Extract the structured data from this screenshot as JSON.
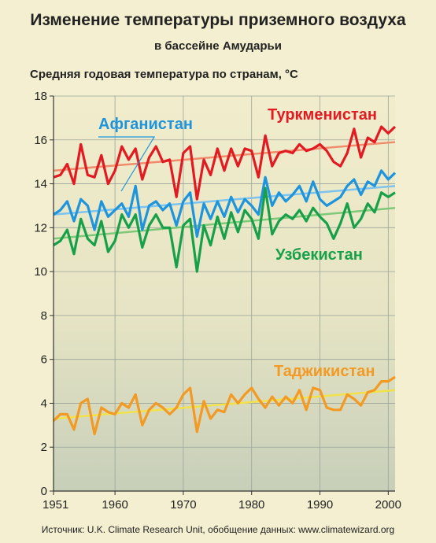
{
  "title": "Изменение температуры приземного воздуха",
  "subtitle": "в бассейне Амударьи",
  "ylabel": "Средняя годовая температура по странам, °С",
  "source": "Источник: U.K. Climate Research Unit, обобщение данных: www.climatewizard.org",
  "chart_data": {
    "type": "line",
    "x": [
      1951,
      1952,
      1953,
      1954,
      1955,
      1956,
      1957,
      1958,
      1959,
      1960,
      1961,
      1962,
      1963,
      1964,
      1965,
      1966,
      1967,
      1968,
      1969,
      1970,
      1971,
      1972,
      1973,
      1974,
      1975,
      1976,
      1977,
      1978,
      1979,
      1980,
      1981,
      1982,
      1983,
      1984,
      1985,
      1986,
      1987,
      1988,
      1989,
      1990,
      1991,
      1992,
      1993,
      1994,
      1995,
      1996,
      1997,
      1998,
      1999,
      2000,
      2001
    ],
    "x_ticks": [
      "1951",
      "1960",
      "1970",
      "1980",
      "1990",
      "2000"
    ],
    "x_tick_values": [
      1951,
      1960,
      1970,
      1980,
      1990,
      2000
    ],
    "y_ticks": [
      "0",
      "2",
      "4",
      "6",
      "8",
      "10",
      "12",
      "14",
      "16",
      "18"
    ],
    "ylim": [
      0,
      18
    ],
    "xlim": [
      1951,
      2001
    ],
    "grid": true,
    "series": [
      {
        "name": "Туркменистан",
        "color": "#e21a22",
        "trend_color": "#f08c6c",
        "trend": [
          14.6,
          15.9
        ],
        "values": [
          14.3,
          14.4,
          14.9,
          14.0,
          15.8,
          14.4,
          14.3,
          15.3,
          14.0,
          14.6,
          15.7,
          15.1,
          15.6,
          14.2,
          15.2,
          15.7,
          15.0,
          15.1,
          13.4,
          15.4,
          15.7,
          13.3,
          15.1,
          14.4,
          15.6,
          14.6,
          15.6,
          14.8,
          15.6,
          15.5,
          14.3,
          16.2,
          14.8,
          15.4,
          15.5,
          15.4,
          15.8,
          15.5,
          15.6,
          15.8,
          15.5,
          15.0,
          14.8,
          15.4,
          16.5,
          15.2,
          16.1,
          15.9,
          16.6,
          16.3,
          16.6
        ]
      },
      {
        "name": "Афганистан",
        "color": "#1e94dc",
        "trend_color": "#7ec3ee",
        "trend": [
          12.6,
          13.9
        ],
        "values": [
          12.6,
          12.8,
          13.2,
          12.3,
          13.3,
          13.0,
          11.9,
          13.2,
          12.5,
          12.8,
          13.1,
          12.5,
          13.9,
          11.9,
          13.0,
          13.2,
          12.8,
          13.1,
          12.1,
          13.2,
          13.6,
          11.6,
          13.1,
          12.4,
          13.2,
          12.5,
          13.4,
          12.7,
          13.3,
          13.0,
          12.6,
          14.3,
          13.0,
          13.6,
          13.2,
          13.5,
          13.9,
          13.2,
          14.1,
          13.3,
          13.0,
          13.2,
          13.4,
          13.9,
          14.2,
          13.5,
          14.1,
          13.9,
          14.6,
          14.2,
          14.5
        ]
      },
      {
        "name": "Узбекистан",
        "color": "#17a049",
        "trend_color": "#7fc87a",
        "trend": [
          11.5,
          12.9
        ],
        "values": [
          11.2,
          11.4,
          11.9,
          10.8,
          12.4,
          11.5,
          11.2,
          12.3,
          10.9,
          11.4,
          12.6,
          12.0,
          12.6,
          11.1,
          12.1,
          12.6,
          12.0,
          12.0,
          10.2,
          12.1,
          12.4,
          10.0,
          12.1,
          11.2,
          12.5,
          11.5,
          12.7,
          11.8,
          12.8,
          12.4,
          11.5,
          13.8,
          11.7,
          12.3,
          12.6,
          12.4,
          12.8,
          12.3,
          12.9,
          12.5,
          12.2,
          11.5,
          12.2,
          13.1,
          12.0,
          12.4,
          13.1,
          12.7,
          13.6,
          13.4,
          13.6
        ]
      },
      {
        "name": "Таджикистан",
        "color": "#f39a24",
        "trend_color": "#f2e24a",
        "trend": [
          3.3,
          4.6
        ],
        "values": [
          3.2,
          3.5,
          3.5,
          2.8,
          4.0,
          4.2,
          2.6,
          3.8,
          3.6,
          3.5,
          4.0,
          3.8,
          4.4,
          3.0,
          3.7,
          4.0,
          3.8,
          3.5,
          3.8,
          4.4,
          4.7,
          2.7,
          4.1,
          3.3,
          3.7,
          3.6,
          4.4,
          4.0,
          4.4,
          4.7,
          4.2,
          3.8,
          4.3,
          3.9,
          4.3,
          4.0,
          4.6,
          3.7,
          4.7,
          4.6,
          3.8,
          3.7,
          3.7,
          4.4,
          4.2,
          3.9,
          4.5,
          4.6,
          5.0,
          5.0,
          5.2
        ]
      }
    ]
  }
}
